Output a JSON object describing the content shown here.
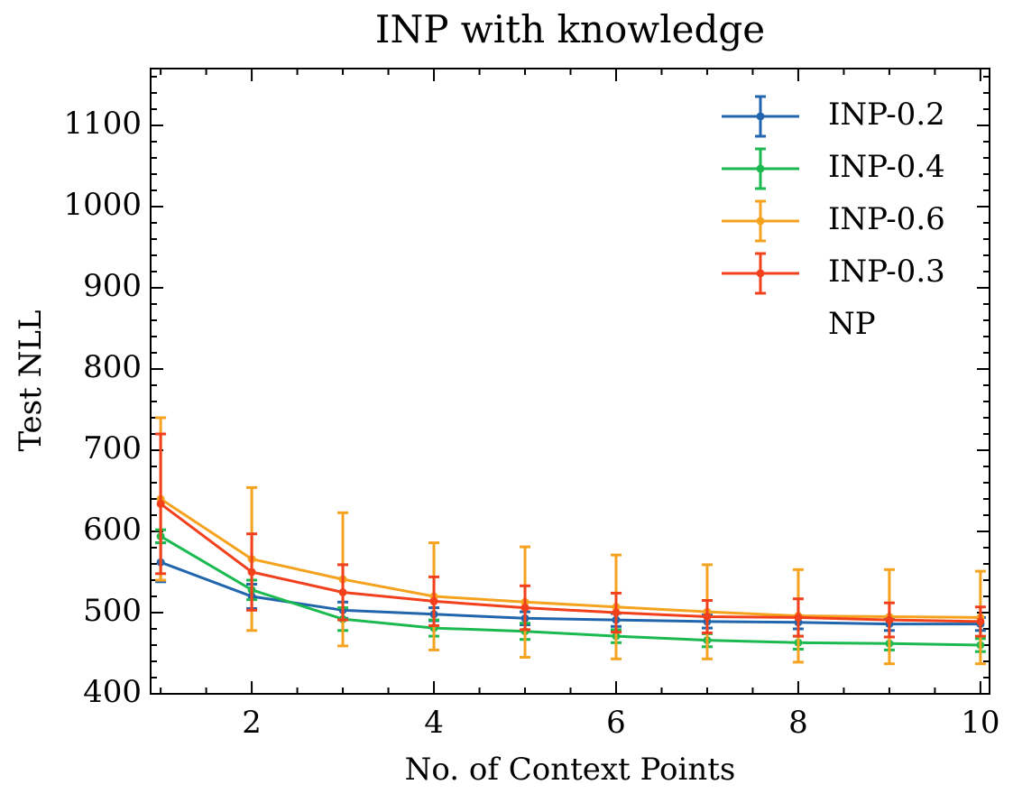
{
  "chart_data": {
    "type": "errorbar_line",
    "title": "INP with knowledge",
    "xlabel": "No. of Context Points",
    "ylabel": "Test NLL",
    "x": [
      1,
      2,
      3,
      4,
      5,
      6,
      7,
      8,
      9,
      10
    ],
    "series": [
      {
        "name": "INP-0.2",
        "color": "#2166ac",
        "values": [
          562,
          520,
          503,
          498,
          493,
          491,
          489,
          488,
          486,
          486
        ],
        "errors": [
          24,
          15,
          10,
          8,
          8,
          8,
          8,
          8,
          8,
          8
        ]
      },
      {
        "name": "INP-0.4",
        "color": "#1bba50",
        "values": [
          594,
          528,
          492,
          481,
          477,
          471,
          466,
          463,
          462,
          460
        ],
        "errors": [
          8,
          12,
          14,
          10,
          10,
          8,
          8,
          8,
          8,
          8
        ]
      },
      {
        "name": "INP-0.6",
        "color": "#f5a21e",
        "values": [
          640,
          566,
          541,
          520,
          513,
          507,
          501,
          496,
          495,
          494
        ],
        "errors": [
          100,
          88,
          82,
          66,
          68,
          64,
          58,
          57,
          58,
          57
        ]
      },
      {
        "name": "INP-0.3",
        "color": "#f2401c",
        "values": [
          634,
          550,
          525,
          514,
          506,
          500,
          495,
          494,
          491,
          489
        ],
        "errors": [
          86,
          47,
          34,
          30,
          27,
          24,
          20,
          23,
          21,
          18
        ]
      },
      {
        "name": "NP",
        "values": [
          null,
          null,
          null,
          null,
          null,
          null,
          null,
          null,
          null,
          null
        ]
      }
    ],
    "xlim": [
      0.89,
      10.1
    ],
    "xticks": [
      2,
      4,
      6,
      8,
      10
    ],
    "ylim": [
      400,
      1170
    ],
    "yticks": [
      400,
      500,
      600,
      700,
      800,
      900,
      1000,
      1100
    ],
    "legend": "upper right"
  }
}
